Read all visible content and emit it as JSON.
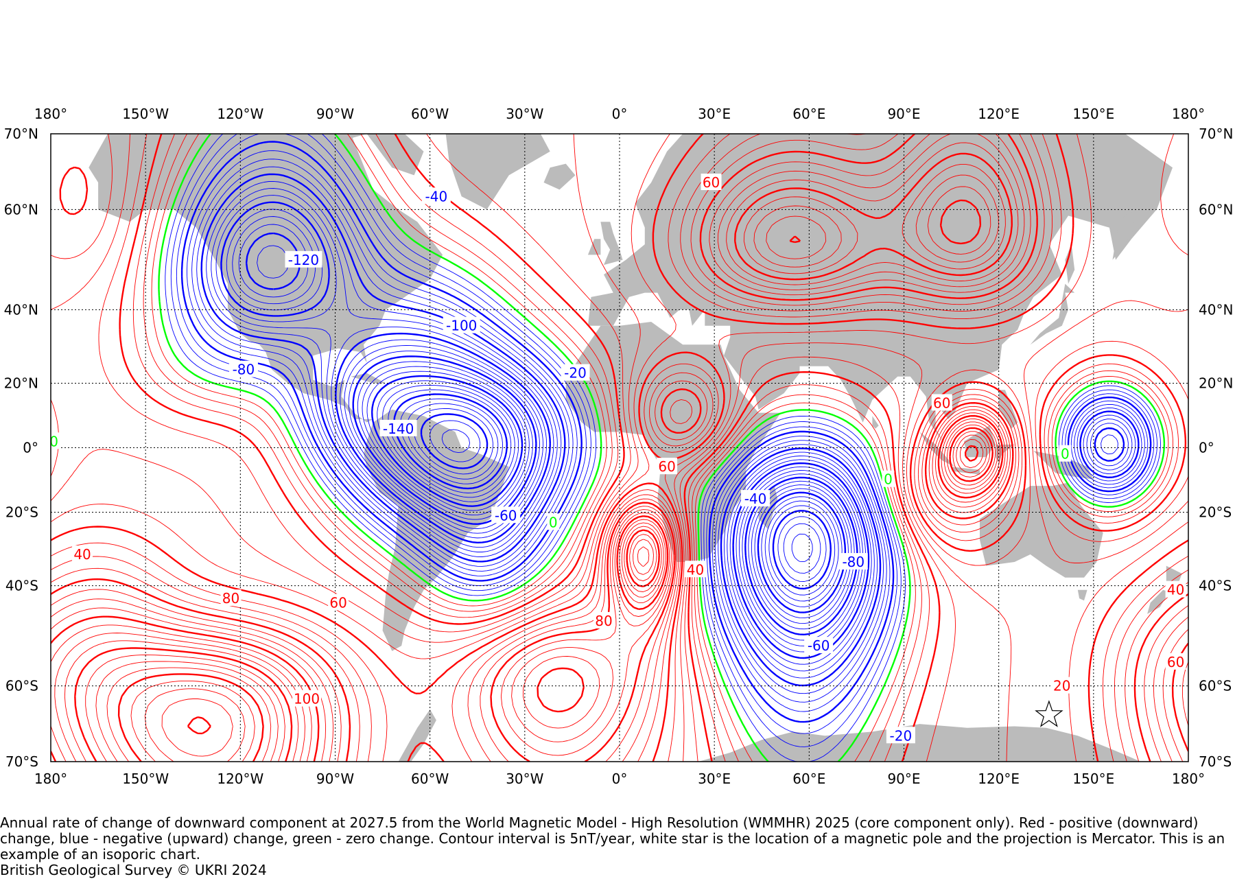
{
  "map": {
    "projection": "Mercator",
    "lon_ticks": [
      "180°",
      "150°W",
      "120°W",
      "90°W",
      "60°W",
      "30°W",
      "0°",
      "30°E",
      "60°E",
      "90°E",
      "120°E",
      "150°E",
      "180°"
    ],
    "lat_ticks": [
      "70°N",
      "60°N",
      "40°N",
      "20°N",
      "0°",
      "20°S",
      "40°S",
      "60°S",
      "70°S"
    ],
    "colors": {
      "positive": "#ff0000",
      "negative": "#0000ff",
      "zero": "#00ff00",
      "land": "#bbbbbb",
      "grid": "#000000"
    },
    "contour_labels": [
      {
        "text": "-40",
        "lon": -58,
        "lat": 62,
        "sign": "negative"
      },
      {
        "text": "-120",
        "lon": -100,
        "lat": 51,
        "sign": "negative"
      },
      {
        "text": "-100",
        "lon": -50,
        "lat": 36,
        "sign": "negative"
      },
      {
        "text": "-80",
        "lon": -119,
        "lat": 24,
        "sign": "negative"
      },
      {
        "text": "-20",
        "lon": -14,
        "lat": 23,
        "sign": "negative"
      },
      {
        "text": "-140",
        "lon": -70,
        "lat": 6,
        "sign": "negative"
      },
      {
        "text": "-60",
        "lon": -36,
        "lat": -21,
        "sign": "negative"
      },
      {
        "text": "0",
        "lon": -21,
        "lat": -23,
        "sign": "zero"
      },
      {
        "text": "0",
        "lon": -179,
        "lat": 2,
        "sign": "zero"
      },
      {
        "text": "60",
        "lon": 29,
        "lat": 64,
        "sign": "positive"
      },
      {
        "text": "60",
        "lon": 15,
        "lat": -6,
        "sign": "positive"
      },
      {
        "text": "40",
        "lon": 24,
        "lat": -36,
        "sign": "positive"
      },
      {
        "text": "80",
        "lon": -5,
        "lat": -48,
        "sign": "positive"
      },
      {
        "text": "40",
        "lon": -170,
        "lat": -32,
        "sign": "positive"
      },
      {
        "text": "80",
        "lon": -123,
        "lat": -43,
        "sign": "positive"
      },
      {
        "text": "60",
        "lon": -89,
        "lat": -44,
        "sign": "positive"
      },
      {
        "text": "100",
        "lon": -99,
        "lat": -62,
        "sign": "positive"
      },
      {
        "text": "60",
        "lon": 102,
        "lat": 14,
        "sign": "positive"
      },
      {
        "text": "-40",
        "lon": 43,
        "lat": -16,
        "sign": "negative"
      },
      {
        "text": "-80",
        "lon": 74,
        "lat": -34,
        "sign": "negative"
      },
      {
        "text": "-60",
        "lon": 63,
        "lat": -53,
        "sign": "negative"
      },
      {
        "text": "-20",
        "lon": 89,
        "lat": -67,
        "sign": "negative"
      },
      {
        "text": "0",
        "lon": 85,
        "lat": -10,
        "sign": "zero"
      },
      {
        "text": "0",
        "lon": 141,
        "lat": -2,
        "sign": "zero"
      },
      {
        "text": "20",
        "lon": 140,
        "lat": -60,
        "sign": "positive"
      },
      {
        "text": "40",
        "lon": 176,
        "lat": -41,
        "sign": "positive"
      },
      {
        "text": "60",
        "lon": 176,
        "lat": -56,
        "sign": "positive"
      }
    ],
    "magnetic_pole": {
      "lon": 135.9,
      "lat": -64.3
    }
  },
  "caption": {
    "text": "Annual rate of change of downward component at 2027.5 from the World Magnetic Model - High Resolution (WMMHR) 2025 (core component only). Red - positive (downward) change, blue - negative (upward) change, green - zero change. Contour interval is 5nT/year, white star is the location of a magnetic pole and the projection is Mercator. This is an example of an isoporic chart.",
    "credit": "British Geological Survey © UKRI 2024"
  }
}
